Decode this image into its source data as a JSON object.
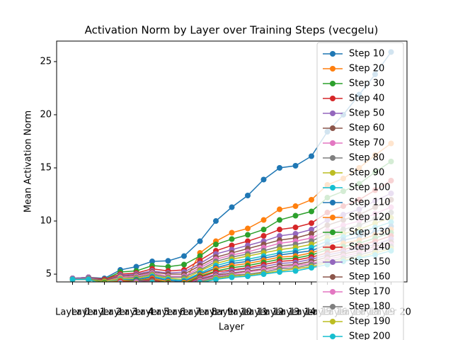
{
  "chart_data": {
    "type": "line",
    "title": "Activation Norm by Layer over Training Steps (vecgelu)",
    "x_label": "Layer",
    "y_label": "Mean Activation Norm",
    "categories": [
      "Layer 0",
      "Layer 1",
      "Layer 2",
      "Layer 3",
      "Layer 4",
      "Layer 5",
      "Layer 6",
      "Layer 7",
      "Layer 8",
      "Layer 9",
      "Layer 10",
      "Layer 11",
      "Layer 12",
      "Layer 13",
      "Layer 14",
      "Layer 15",
      "Layer 16",
      "Layer 17",
      "Layer 18",
      "Layer 19",
      "Layer 20"
    ],
    "ylim": [
      4.27,
      26.93
    ],
    "yticks": [
      5,
      10,
      15,
      20,
      25
    ],
    "grid": false,
    "legend": "upper right",
    "markers": true,
    "series": [
      {
        "name": "Step 10",
        "color": "#1f77b4",
        "values": [
          4.6,
          4.7,
          4.6,
          5.4,
          5.7,
          6.2,
          6.25,
          6.7,
          8.1,
          10.0,
          11.3,
          12.4,
          13.9,
          15.0,
          15.2,
          16.1,
          18.4,
          20.0,
          21.9,
          23.8,
          25.9
        ]
      },
      {
        "name": "Step 20",
        "color": "#ff7f0e",
        "values": [
          4.5,
          4.5,
          4.1,
          4.1,
          4.2,
          4.3,
          4.0,
          4.1,
          7.0,
          8.1,
          8.9,
          9.3,
          10.1,
          11.1,
          11.4,
          12.0,
          13.4,
          14.0,
          15.0,
          16.2,
          17.3
        ]
      },
      {
        "name": "Step 30",
        "color": "#2ca02c",
        "values": [
          4.6,
          4.7,
          4.5,
          5.2,
          5.3,
          5.8,
          5.7,
          5.9,
          6.7,
          7.8,
          8.3,
          8.7,
          9.2,
          10.1,
          10.5,
          10.9,
          12.2,
          12.8,
          13.5,
          14.6,
          15.6
        ]
      },
      {
        "name": "Step 40",
        "color": "#d62728",
        "values": [
          4.6,
          4.7,
          4.5,
          5.0,
          5.1,
          5.5,
          5.3,
          5.4,
          6.3,
          7.2,
          7.7,
          8.1,
          8.6,
          9.2,
          9.4,
          9.8,
          10.8,
          11.4,
          12.0,
          12.9,
          13.8
        ]
      },
      {
        "name": "Step 50",
        "color": "#9467bd",
        "values": [
          4.6,
          4.7,
          4.4,
          4.9,
          5.0,
          5.3,
          5.1,
          5.2,
          6.0,
          6.9,
          7.3,
          7.7,
          8.1,
          8.6,
          8.8,
          9.2,
          10.1,
          10.6,
          11.1,
          11.9,
          12.6
        ]
      },
      {
        "name": "Step 60",
        "color": "#8c564b",
        "values": [
          4.5,
          4.6,
          4.4,
          4.8,
          4.9,
          5.2,
          5.0,
          5.0,
          5.8,
          6.6,
          7.0,
          7.4,
          7.8,
          8.2,
          8.4,
          8.8,
          9.6,
          10.1,
          10.6,
          11.3,
          12.0
        ]
      },
      {
        "name": "Step 70",
        "color": "#e377c2",
        "values": [
          4.5,
          4.6,
          4.3,
          4.7,
          4.8,
          5.1,
          4.8,
          4.8,
          5.6,
          6.4,
          6.8,
          7.1,
          7.5,
          7.9,
          8.1,
          8.4,
          9.1,
          9.6,
          10.0,
          10.7,
          11.3
        ]
      },
      {
        "name": "Step 80",
        "color": "#7f7f7f",
        "values": [
          4.5,
          4.6,
          4.3,
          4.6,
          4.7,
          5.0,
          4.7,
          4.7,
          5.4,
          6.2,
          6.6,
          6.9,
          7.2,
          7.6,
          7.8,
          8.1,
          8.8,
          9.2,
          9.6,
          10.2,
          10.8
        ]
      },
      {
        "name": "Step 90",
        "color": "#bcbd22",
        "values": [
          4.5,
          4.5,
          4.3,
          4.6,
          4.6,
          4.9,
          4.6,
          4.5,
          5.3,
          6.0,
          6.4,
          6.7,
          7.0,
          7.3,
          7.5,
          7.8,
          8.4,
          8.8,
          9.2,
          9.8,
          10.3
        ]
      },
      {
        "name": "Step 100",
        "color": "#17becf",
        "values": [
          4.5,
          4.5,
          4.2,
          4.5,
          4.5,
          4.8,
          4.5,
          4.4,
          5.1,
          5.8,
          6.2,
          6.4,
          6.7,
          7.0,
          7.2,
          7.5,
          8.1,
          8.5,
          8.9,
          9.4,
          9.9
        ]
      },
      {
        "name": "Step 110",
        "color": "#1f77b4",
        "values": [
          4.5,
          4.5,
          4.2,
          4.4,
          4.5,
          4.7,
          4.4,
          4.3,
          5.0,
          5.6,
          6.0,
          6.2,
          6.5,
          6.8,
          7.0,
          7.2,
          7.8,
          8.2,
          8.5,
          9.0,
          9.5
        ]
      },
      {
        "name": "Step 120",
        "color": "#ff7f0e",
        "values": [
          4.5,
          4.5,
          4.2,
          4.4,
          4.4,
          4.6,
          4.3,
          4.2,
          4.9,
          5.5,
          5.8,
          6.0,
          6.3,
          6.6,
          6.7,
          7.0,
          7.5,
          7.9,
          8.2,
          8.7,
          9.2
        ]
      },
      {
        "name": "Step 130",
        "color": "#2ca02c",
        "values": [
          4.5,
          4.5,
          4.2,
          4.3,
          4.4,
          4.5,
          4.2,
          4.1,
          4.8,
          5.3,
          5.6,
          5.8,
          6.1,
          6.4,
          6.5,
          6.8,
          7.3,
          7.6,
          7.9,
          8.4,
          8.9
        ]
      },
      {
        "name": "Step 140",
        "color": "#d62728",
        "values": [
          4.5,
          4.5,
          4.1,
          4.3,
          4.3,
          4.5,
          4.1,
          4.0,
          4.7,
          5.2,
          5.4,
          5.6,
          5.9,
          6.2,
          6.3,
          6.6,
          7.0,
          7.3,
          7.7,
          8.1,
          8.6
        ]
      },
      {
        "name": "Step 150",
        "color": "#9467bd",
        "values": [
          4.5,
          4.5,
          4.1,
          4.2,
          4.3,
          4.4,
          4.0,
          3.9,
          4.6,
          5.0,
          5.3,
          5.5,
          5.7,
          6.0,
          6.1,
          6.4,
          6.8,
          7.1,
          7.4,
          7.8,
          8.3
        ]
      },
      {
        "name": "Step 160",
        "color": "#8c564b",
        "values": [
          4.5,
          4.5,
          4.1,
          4.2,
          4.2,
          4.4,
          4.0,
          3.8,
          4.5,
          4.9,
          5.1,
          5.3,
          5.5,
          5.8,
          5.9,
          6.2,
          6.6,
          6.9,
          7.2,
          7.6,
          8.0
        ]
      },
      {
        "name": "Step 170",
        "color": "#e377c2",
        "values": [
          4.5,
          4.5,
          4.1,
          4.2,
          4.2,
          4.3,
          3.9,
          3.8,
          4.4,
          4.8,
          5.0,
          5.2,
          5.4,
          5.6,
          5.8,
          6.0,
          6.4,
          6.7,
          7.0,
          7.4,
          7.8
        ]
      },
      {
        "name": "Step 180",
        "color": "#7f7f7f",
        "values": [
          4.5,
          4.5,
          4.1,
          4.1,
          4.1,
          4.3,
          3.9,
          3.7,
          4.3,
          4.7,
          4.9,
          5.0,
          5.2,
          5.5,
          5.6,
          5.9,
          6.2,
          6.5,
          6.8,
          7.2,
          7.6
        ]
      },
      {
        "name": "Step 190",
        "color": "#bcbd22",
        "values": [
          4.5,
          4.5,
          4.1,
          4.1,
          4.1,
          4.2,
          3.8,
          3.7,
          4.2,
          4.6,
          4.8,
          4.9,
          5.1,
          5.3,
          5.5,
          5.7,
          6.1,
          6.3,
          6.6,
          7.0,
          7.4
        ]
      },
      {
        "name": "Step 200",
        "color": "#17becf",
        "values": [
          4.5,
          4.5,
          4.0,
          4.1,
          4.0,
          4.2,
          3.8,
          3.6,
          4.2,
          4.5,
          4.7,
          4.8,
          5.0,
          5.2,
          5.3,
          5.6,
          5.9,
          6.2,
          6.5,
          6.8,
          7.2
        ]
      }
    ]
  }
}
